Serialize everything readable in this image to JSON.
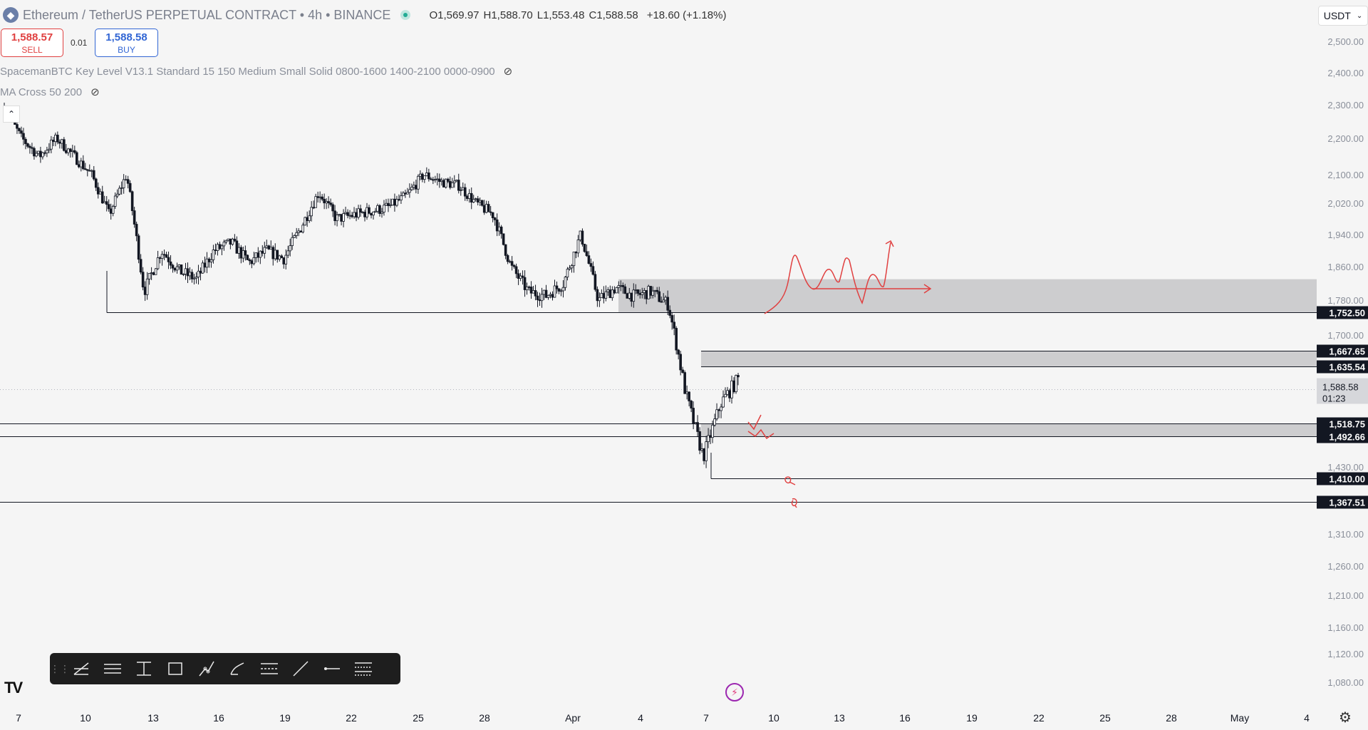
{
  "header": {
    "title": "Ethereum / TetherUS PERPETUAL CONTRACT • 4h • BINANCE",
    "ohlc": [
      {
        "k": "O",
        "v": "1,569.97"
      },
      {
        "k": "H",
        "v": "1,588.70"
      },
      {
        "k": "L",
        "v": "1,553.48"
      },
      {
        "k": "C",
        "v": "1,588.58"
      },
      {
        "k": "",
        "v": "+18.60 (+1.18%)"
      }
    ]
  },
  "trade": {
    "sell_price": "1,588.57",
    "sell_label": "SELL",
    "spread": "0.01",
    "buy_price": "1,588.58",
    "buy_label": "BUY"
  },
  "indicators": [
    "SpacemanBTC Key Level V13.1 Standard 15 150 Medium Small Solid 0800-1600 1400-2100 0000-0900",
    "MA Cross 50 200"
  ],
  "currency": "USDT",
  "toolbar_icons": [
    "trend-lines-icon",
    "horizontal-lines-icon",
    "vertical-range-icon",
    "rectangle-icon",
    "path-icon",
    "brush-icon",
    "parallel-channel-icon",
    "line-icon",
    "horizontal-ray-icon",
    "fib-retracement-icon"
  ],
  "chart_data": {
    "type": "candlestick",
    "interval": "4h",
    "y_ticks": [
      "2,500.00",
      "2,400.00",
      "2,300.00",
      "2,200.00",
      "2,100.00",
      "2,020.00",
      "1,940.00",
      "1,860.00",
      "1,780.00",
      "1,700.00",
      "1,430.00",
      "1,310.00",
      "1,260.00",
      "1,210.00",
      "1,160.00",
      "1,120.00",
      "1,080.00"
    ],
    "x_ticks": [
      "7",
      "10",
      "13",
      "16",
      "19",
      "22",
      "25",
      "28",
      "Apr",
      "4",
      "7",
      "10",
      "13",
      "16",
      "19",
      "22",
      "25",
      "28",
      "May",
      "4"
    ],
    "level_labels": [
      "1,752.50",
      "1,667.65",
      "1,635.54",
      "1,518.75",
      "1,492.66",
      "1,410.00",
      "1,367.51"
    ],
    "current_price": {
      "price": "1,588.58",
      "countdown": "01:23"
    },
    "zones": [
      {
        "from": 1752.5,
        "to": 1830
      },
      {
        "from": 1635.54,
        "to": 1667.65
      },
      {
        "from": 1492.66,
        "to": 1518.75
      }
    ],
    "price_path": [
      2290,
      2200,
      2150,
      2200,
      2150,
      2100,
      1990,
      2100,
      1800,
      1900,
      1850,
      1830,
      1900,
      1920,
      1870,
      1900,
      1880,
      1960,
      2050,
      1980,
      1990,
      2000,
      2010,
      2040,
      2100,
      2080,
      2070,
      2020,
      1990,
      1860,
      1800,
      1790,
      1820,
      1940,
      1780,
      1810,
      1790,
      1800,
      1770,
      1580,
      1450,
      1560,
      1610
    ]
  }
}
